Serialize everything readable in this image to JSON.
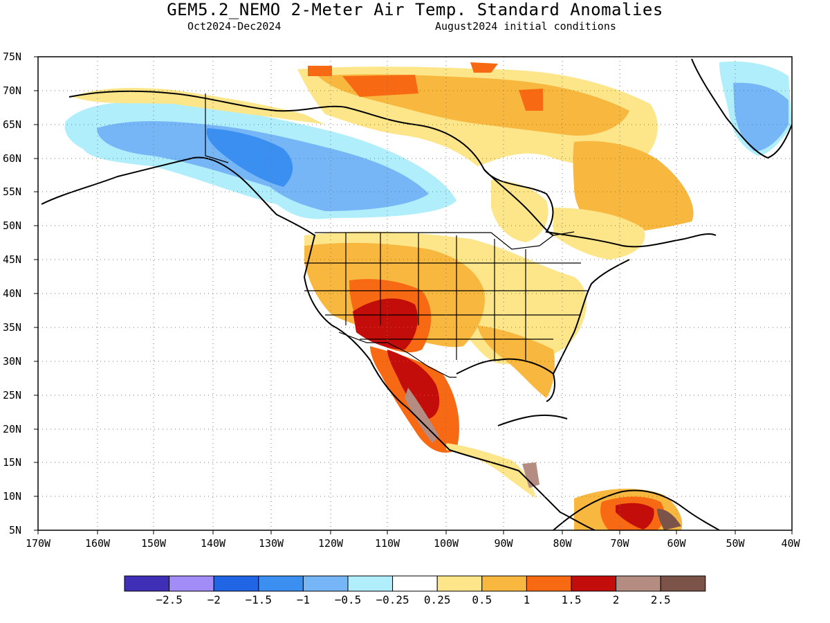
{
  "title": "GEM5.2_NEMO 2-Meter Air Temp. Standard Anomalies",
  "period": "Oct2024-Dec2024",
  "initial_conditions": "August2024 initial conditions",
  "lat_labels": [
    "75N",
    "70N",
    "65N",
    "60N",
    "55N",
    "50N",
    "45N",
    "40N",
    "35N",
    "30N",
    "25N",
    "20N",
    "15N",
    "10N",
    "5N"
  ],
  "lon_labels": [
    "170W",
    "160W",
    "150W",
    "140W",
    "130W",
    "120W",
    "110W",
    "100W",
    "90W",
    "80W",
    "70W",
    "60W",
    "50W",
    "40W"
  ],
  "colorbar": {
    "colors": [
      "#3f2fb7",
      "#a28cf8",
      "#2065e3",
      "#3b8ff0",
      "#77b6f6",
      "#b0eefb",
      "#ffffff",
      "#fde68a",
      "#f8b73e",
      "#f76a13",
      "#c20d0a",
      "#b48c81",
      "#7b5348"
    ],
    "labels": [
      "-2.5",
      "-2",
      "-1.5",
      "-1",
      "-0.5",
      "-0.25",
      "0.25",
      "0.5",
      "1",
      "1.5",
      "2",
      "2.5"
    ]
  }
}
